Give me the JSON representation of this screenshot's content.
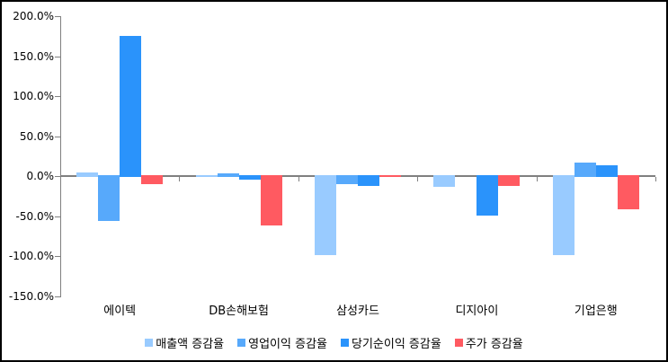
{
  "chart_data": {
    "type": "bar",
    "title": "",
    "categories": [
      "에이텍",
      "DB손해보험",
      "삼성카드",
      "디지아이",
      "기업은행"
    ],
    "series": [
      {
        "name": "매출액 증감율",
        "color": "#99CBFF",
        "values": [
          6,
          2,
          -100,
          -15,
          -100
        ]
      },
      {
        "name": "영업이익 증감율",
        "color": "#57A9FB",
        "values": [
          -57,
          5,
          -11,
          0,
          18
        ]
      },
      {
        "name": "당기순이익 증감율",
        "color": "#2A93FB",
        "values": [
          176,
          -6,
          -14,
          -50,
          15
        ]
      },
      {
        "name": "주가 증감율",
        "color": "#FF5A61",
        "values": [
          -11,
          -63,
          2,
          -14,
          -43
        ]
      }
    ],
    "ylim": [
      -150,
      200
    ],
    "ytick_interval": 50,
    "ytick_labels": [
      "200.0%",
      "150.0%",
      "100.0%",
      "50.0%",
      "0.0%",
      "-50.0%",
      "-100.0%",
      "-150.0%"
    ],
    "grid": false,
    "legend_position": "bottom",
    "axis_color": "#808080",
    "text_color": "#000000",
    "background_color": "#FFFFFF",
    "frame_border_color": "#000000"
  }
}
